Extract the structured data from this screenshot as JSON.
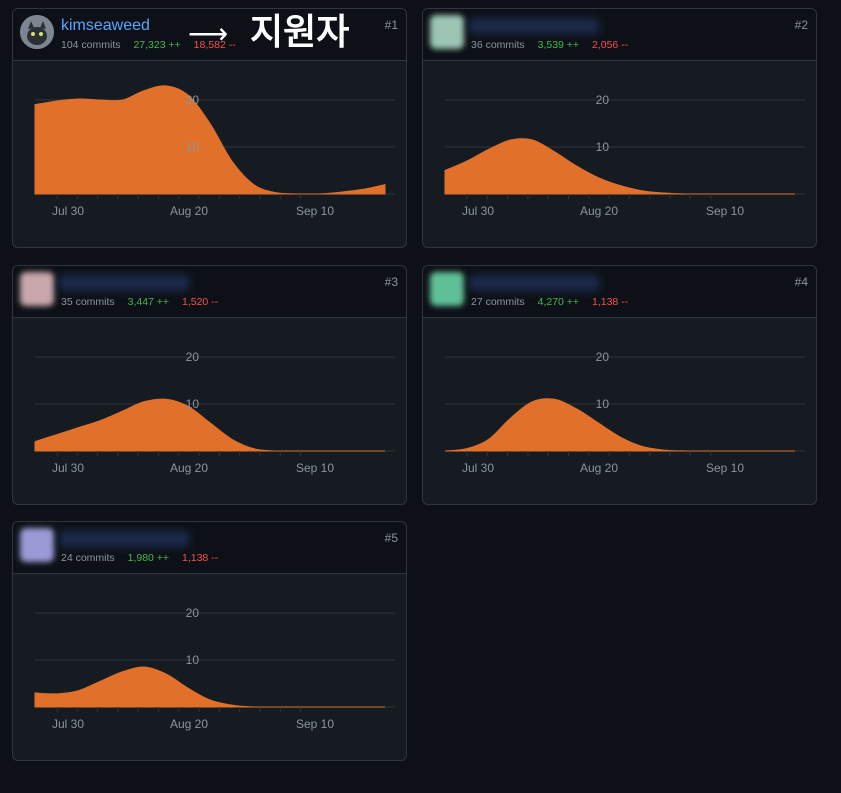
{
  "cards": [
    {
      "rank": "#1",
      "username": "kimseaweed",
      "commits": "104 commits",
      "additions": "27,323 ++",
      "deletions": "18,582 --",
      "avatar_color": "#6e7681",
      "name_visible": true
    },
    {
      "rank": "#2",
      "username": "",
      "commits": "36 commits",
      "additions": "3,539 ++",
      "deletions": "2,056 --",
      "avatar_color": "#9cc5b4",
      "name_visible": false
    },
    {
      "rank": "#3",
      "username": "",
      "commits": "35 commits",
      "additions": "3,447 ++",
      "deletions": "1,520 --",
      "avatar_color": "#c9a7ad",
      "name_visible": false
    },
    {
      "rank": "#4",
      "username": "",
      "commits": "27 commits",
      "additions": "4,270 ++",
      "deletions": "1,138 --",
      "avatar_color": "#5fbf96",
      "name_visible": false
    },
    {
      "rank": "#5",
      "username": "",
      "commits": "24 commits",
      "additions": "1,980 ++",
      "deletions": "1,138 --",
      "avatar_color": "#9a9ad6",
      "name_visible": false
    }
  ],
  "annotation": {
    "arrow": "⟶",
    "text": "지원자"
  },
  "chart_data": [
    {
      "type": "area",
      "x_ticks": [
        "Jul 30",
        "Aug 20",
        "Sep 10"
      ],
      "y_ticks": [
        "10",
        "20"
      ],
      "ylim": [
        0,
        28
      ],
      "grid": true,
      "points": [
        [
          0,
          19
        ],
        [
          1,
          19.8
        ],
        [
          2,
          20.2
        ],
        [
          3,
          20
        ],
        [
          4,
          20
        ],
        [
          5,
          22
        ],
        [
          6,
          23
        ],
        [
          7,
          21
        ],
        [
          8,
          15
        ],
        [
          9,
          7
        ],
        [
          10,
          2
        ],
        [
          11,
          0.3
        ],
        [
          12,
          0
        ],
        [
          13,
          0
        ],
        [
          14,
          0.4
        ],
        [
          15,
          1
        ],
        [
          16,
          2
        ]
      ]
    },
    {
      "type": "area",
      "x_ticks": [
        "Jul 30",
        "Aug 20",
        "Sep 10"
      ],
      "y_ticks": [
        "10",
        "20"
      ],
      "ylim": [
        0,
        28
      ],
      "grid": true,
      "points": [
        [
          0,
          5
        ],
        [
          1,
          7
        ],
        [
          2,
          9.5
        ],
        [
          3,
          11.5
        ],
        [
          4,
          11.5
        ],
        [
          5,
          9
        ],
        [
          6,
          6
        ],
        [
          7,
          3.5
        ],
        [
          8,
          1.8
        ],
        [
          9,
          0.7
        ],
        [
          10,
          0.2
        ],
        [
          11,
          0
        ],
        [
          12,
          0
        ],
        [
          13,
          0
        ],
        [
          14,
          0
        ],
        [
          15,
          0
        ],
        [
          16,
          0
        ]
      ]
    },
    {
      "type": "area",
      "x_ticks": [
        "Jul 30",
        "Aug 20",
        "Sep 10"
      ],
      "y_ticks": [
        "10",
        "20"
      ],
      "ylim": [
        0,
        28
      ],
      "grid": true,
      "points": [
        [
          0,
          2
        ],
        [
          1,
          3.5
        ],
        [
          2,
          5
        ],
        [
          3,
          6.5
        ],
        [
          4,
          8.5
        ],
        [
          5,
          10.5
        ],
        [
          6,
          11
        ],
        [
          7,
          9.5
        ],
        [
          8,
          6
        ],
        [
          9,
          2.5
        ],
        [
          10,
          0.5
        ],
        [
          11,
          0
        ],
        [
          12,
          0
        ],
        [
          13,
          0
        ],
        [
          14,
          0
        ],
        [
          15,
          0
        ],
        [
          16,
          0
        ]
      ]
    },
    {
      "type": "area",
      "x_ticks": [
        "Jul 30",
        "Aug 20",
        "Sep 10"
      ],
      "y_ticks": [
        "10",
        "20"
      ],
      "ylim": [
        0,
        28
      ],
      "grid": true,
      "points": [
        [
          0,
          0
        ],
        [
          1,
          0.5
        ],
        [
          2,
          2.5
        ],
        [
          3,
          7
        ],
        [
          4,
          10.5
        ],
        [
          5,
          11
        ],
        [
          6,
          9
        ],
        [
          7,
          6
        ],
        [
          8,
          3
        ],
        [
          9,
          1
        ],
        [
          10,
          0.2
        ],
        [
          11,
          0
        ],
        [
          12,
          0
        ],
        [
          13,
          0
        ],
        [
          14,
          0
        ],
        [
          15,
          0
        ],
        [
          16,
          0
        ]
      ]
    },
    {
      "type": "area",
      "x_ticks": [
        "Jul 30",
        "Aug 20",
        "Sep 10"
      ],
      "y_ticks": [
        "10",
        "20"
      ],
      "ylim": [
        0,
        28
      ],
      "grid": true,
      "points": [
        [
          0,
          3
        ],
        [
          1,
          2.8
        ],
        [
          2,
          3.5
        ],
        [
          3,
          5.5
        ],
        [
          4,
          7.5
        ],
        [
          5,
          8.5
        ],
        [
          6,
          7
        ],
        [
          7,
          4
        ],
        [
          8,
          1.5
        ],
        [
          9,
          0.4
        ],
        [
          10,
          0
        ],
        [
          11,
          0
        ],
        [
          12,
          0
        ],
        [
          13,
          0
        ],
        [
          14,
          0
        ],
        [
          15,
          0
        ],
        [
          16,
          0
        ]
      ]
    }
  ]
}
